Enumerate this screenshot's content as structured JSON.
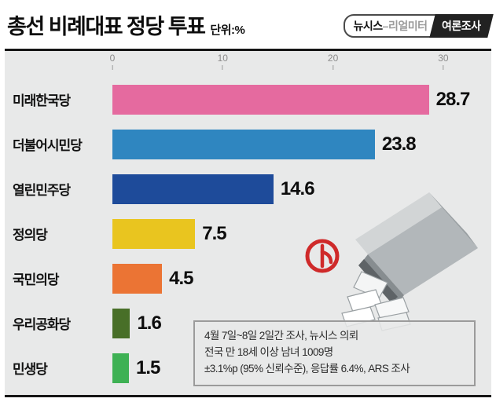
{
  "header": {
    "title_prefix": "총선 ",
    "title_bold": "비례대표 정당",
    "title_suffix": " 투표",
    "unit": "단위:%",
    "badge_left_bold": "뉴시스",
    "badge_left_rest": "–리얼미터",
    "badge_right": "여론조사"
  },
  "chart_data": {
    "type": "bar",
    "orientation": "horizontal",
    "title": "총선 비례대표 정당 투표",
    "unit": "%",
    "axis_ticks": [
      0,
      10,
      20,
      30
    ],
    "axis_max": 33.5,
    "grid": false,
    "categories": [
      "미래한국당",
      "더불어시민당",
      "열린민주당",
      "정의당",
      "국민의당",
      "우리공화당",
      "민생당"
    ],
    "values": [
      28.7,
      23.8,
      14.6,
      7.5,
      4.5,
      1.6,
      1.5
    ],
    "colors": [
      "#e56a9f",
      "#2f86c0",
      "#1e4b9a",
      "#e9c51f",
      "#eb7434",
      "#486f28",
      "#3eb154"
    ]
  },
  "footnote": {
    "lines": [
      "4월 7일~8일 2일간 조사, 뉴시스 의뢰",
      "전국 만 18세 이상 남녀 1009명",
      "±3.1%p (95% 신뢰수준), 응답률 6.4%, ARS 조사"
    ]
  },
  "illustration": {
    "name": "ballot-box-with-stamp",
    "stamp_color": "#cf2a2a",
    "box_color_light": "#d2d5d6",
    "box_color_mid": "#b2b7ba",
    "box_color_dark": "#878d90",
    "panel_bg": "#e8e9e9"
  }
}
